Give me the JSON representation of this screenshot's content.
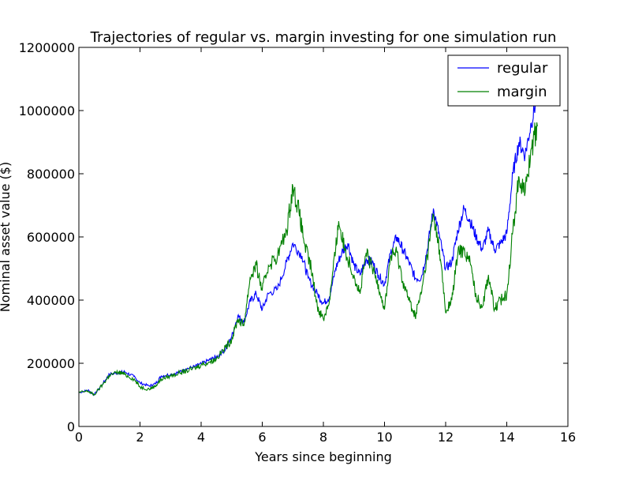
{
  "chart_data": {
    "type": "line",
    "title": "Trajectories of regular vs. margin investing for one simulation run",
    "xlabel": "Years since beginning",
    "ylabel": "Nominal asset value ($)",
    "xlim": [
      0,
      16
    ],
    "ylim": [
      0,
      1200000
    ],
    "xticks": [
      0,
      2,
      4,
      6,
      8,
      10,
      12,
      14,
      16
    ],
    "yticks": [
      0,
      200000,
      400000,
      600000,
      800000,
      1000000,
      1200000
    ],
    "grid": false,
    "legend_position": "top-right",
    "series": [
      {
        "name": "regular",
        "color": "#0000ff",
        "points": [
          [
            0,
            107000
          ],
          [
            0.3,
            115000
          ],
          [
            0.5,
            100000
          ],
          [
            0.8,
            138000
          ],
          [
            1.0,
            165000
          ],
          [
            1.3,
            170000
          ],
          [
            1.5,
            173000
          ],
          [
            1.8,
            158000
          ],
          [
            2.0,
            138000
          ],
          [
            2.3,
            128000
          ],
          [
            2.5,
            135000
          ],
          [
            2.7,
            160000
          ],
          [
            3.0,
            165000
          ],
          [
            3.3,
            172000
          ],
          [
            3.5,
            182000
          ],
          [
            3.8,
            190000
          ],
          [
            4.0,
            198000
          ],
          [
            4.3,
            212000
          ],
          [
            4.5,
            220000
          ],
          [
            4.8,
            245000
          ],
          [
            5.0,
            285000
          ],
          [
            5.2,
            350000
          ],
          [
            5.4,
            330000
          ],
          [
            5.6,
            395000
          ],
          [
            5.8,
            420000
          ],
          [
            6.0,
            370000
          ],
          [
            6.2,
            420000
          ],
          [
            6.5,
            435000
          ],
          [
            6.8,
            520000
          ],
          [
            7.0,
            580000
          ],
          [
            7.3,
            540000
          ],
          [
            7.5,
            470000
          ],
          [
            7.8,
            420000
          ],
          [
            8.0,
            390000
          ],
          [
            8.2,
            410000
          ],
          [
            8.4,
            500000
          ],
          [
            8.6,
            550000
          ],
          [
            8.8,
            580000
          ],
          [
            9.0,
            510000
          ],
          [
            9.2,
            480000
          ],
          [
            9.4,
            530000
          ],
          [
            9.6,
            520000
          ],
          [
            9.8,
            480000
          ],
          [
            10.0,
            450000
          ],
          [
            10.2,
            550000
          ],
          [
            10.4,
            600000
          ],
          [
            10.6,
            560000
          ],
          [
            10.8,
            520000
          ],
          [
            11.0,
            470000
          ],
          [
            11.2,
            470000
          ],
          [
            11.4,
            560000
          ],
          [
            11.6,
            690000
          ],
          [
            11.8,
            600000
          ],
          [
            12.0,
            500000
          ],
          [
            12.2,
            520000
          ],
          [
            12.4,
            620000
          ],
          [
            12.6,
            690000
          ],
          [
            12.8,
            650000
          ],
          [
            13.0,
            600000
          ],
          [
            13.2,
            560000
          ],
          [
            13.4,
            620000
          ],
          [
            13.6,
            560000
          ],
          [
            13.8,
            580000
          ],
          [
            14.0,
            610000
          ],
          [
            14.2,
            800000
          ],
          [
            14.4,
            900000
          ],
          [
            14.6,
            860000
          ],
          [
            14.8,
            960000
          ],
          [
            15.0,
            1050000
          ]
        ]
      },
      {
        "name": "margin",
        "color": "#008000",
        "points": [
          [
            0,
            107000
          ],
          [
            0.3,
            112000
          ],
          [
            0.5,
            100000
          ],
          [
            0.8,
            135000
          ],
          [
            1.0,
            162000
          ],
          [
            1.3,
            172000
          ],
          [
            1.5,
            165000
          ],
          [
            1.8,
            150000
          ],
          [
            2.0,
            125000
          ],
          [
            2.3,
            118000
          ],
          [
            2.5,
            128000
          ],
          [
            2.7,
            150000
          ],
          [
            3.0,
            160000
          ],
          [
            3.3,
            170000
          ],
          [
            3.5,
            175000
          ],
          [
            3.8,
            185000
          ],
          [
            4.0,
            195000
          ],
          [
            4.3,
            205000
          ],
          [
            4.5,
            215000
          ],
          [
            4.8,
            250000
          ],
          [
            5.0,
            275000
          ],
          [
            5.2,
            340000
          ],
          [
            5.4,
            320000
          ],
          [
            5.6,
            470000
          ],
          [
            5.8,
            510000
          ],
          [
            6.0,
            430000
          ],
          [
            6.2,
            510000
          ],
          [
            6.5,
            540000
          ],
          [
            6.8,
            620000
          ],
          [
            7.0,
            760000
          ],
          [
            7.2,
            680000
          ],
          [
            7.4,
            570000
          ],
          [
            7.6,
            500000
          ],
          [
            7.8,
            380000
          ],
          [
            8.0,
            340000
          ],
          [
            8.2,
            400000
          ],
          [
            8.4,
            560000
          ],
          [
            8.5,
            650000
          ],
          [
            8.7,
            560000
          ],
          [
            9.0,
            480000
          ],
          [
            9.2,
            420000
          ],
          [
            9.4,
            550000
          ],
          [
            9.6,
            500000
          ],
          [
            9.8,
            450000
          ],
          [
            10.0,
            370000
          ],
          [
            10.2,
            540000
          ],
          [
            10.4,
            550000
          ],
          [
            10.6,
            460000
          ],
          [
            10.8,
            400000
          ],
          [
            11.0,
            350000
          ],
          [
            11.2,
            420000
          ],
          [
            11.4,
            540000
          ],
          [
            11.6,
            670000
          ],
          [
            11.8,
            560000
          ],
          [
            12.0,
            360000
          ],
          [
            12.2,
            400000
          ],
          [
            12.4,
            550000
          ],
          [
            12.6,
            560000
          ],
          [
            12.8,
            520000
          ],
          [
            13.0,
            410000
          ],
          [
            13.2,
            380000
          ],
          [
            13.4,
            480000
          ],
          [
            13.6,
            370000
          ],
          [
            13.8,
            400000
          ],
          [
            14.0,
            420000
          ],
          [
            14.2,
            620000
          ],
          [
            14.4,
            790000
          ],
          [
            14.6,
            740000
          ],
          [
            14.8,
            880000
          ],
          [
            15.0,
            950000
          ]
        ]
      }
    ]
  }
}
